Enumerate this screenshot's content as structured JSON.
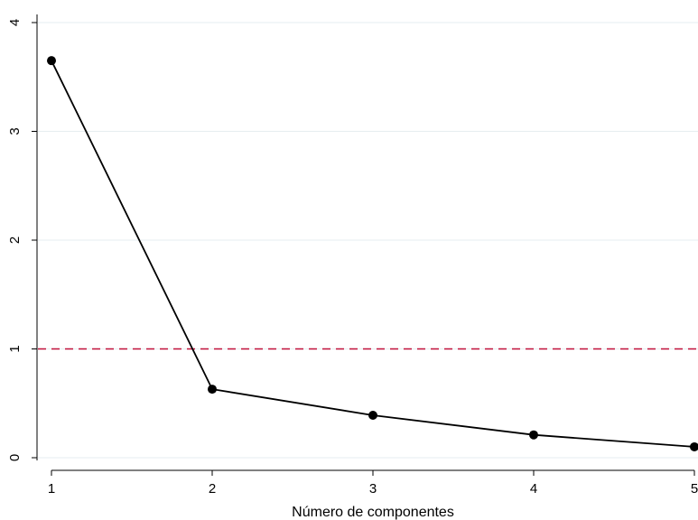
{
  "chart_data": {
    "type": "line",
    "title": "",
    "xlabel": "Número de componentes",
    "ylabel": "",
    "x": [
      1,
      2,
      3,
      4,
      5
    ],
    "series": [
      {
        "values": [
          3.65,
          0.63,
          0.39,
          0.21,
          0.1
        ],
        "color": "#000000",
        "marker": "circle"
      }
    ],
    "xticks": [
      "1",
      "2",
      "3",
      "4",
      "5"
    ],
    "yticks": [
      "0",
      "1",
      "2",
      "3",
      "4"
    ],
    "xlim": [
      1,
      5
    ],
    "ylim": [
      0,
      4
    ],
    "grid": true,
    "grid_color": "#e6eef0",
    "reference_line": {
      "y": 1,
      "color": "#c0113a",
      "style": "dashed"
    },
    "legend": "none"
  }
}
